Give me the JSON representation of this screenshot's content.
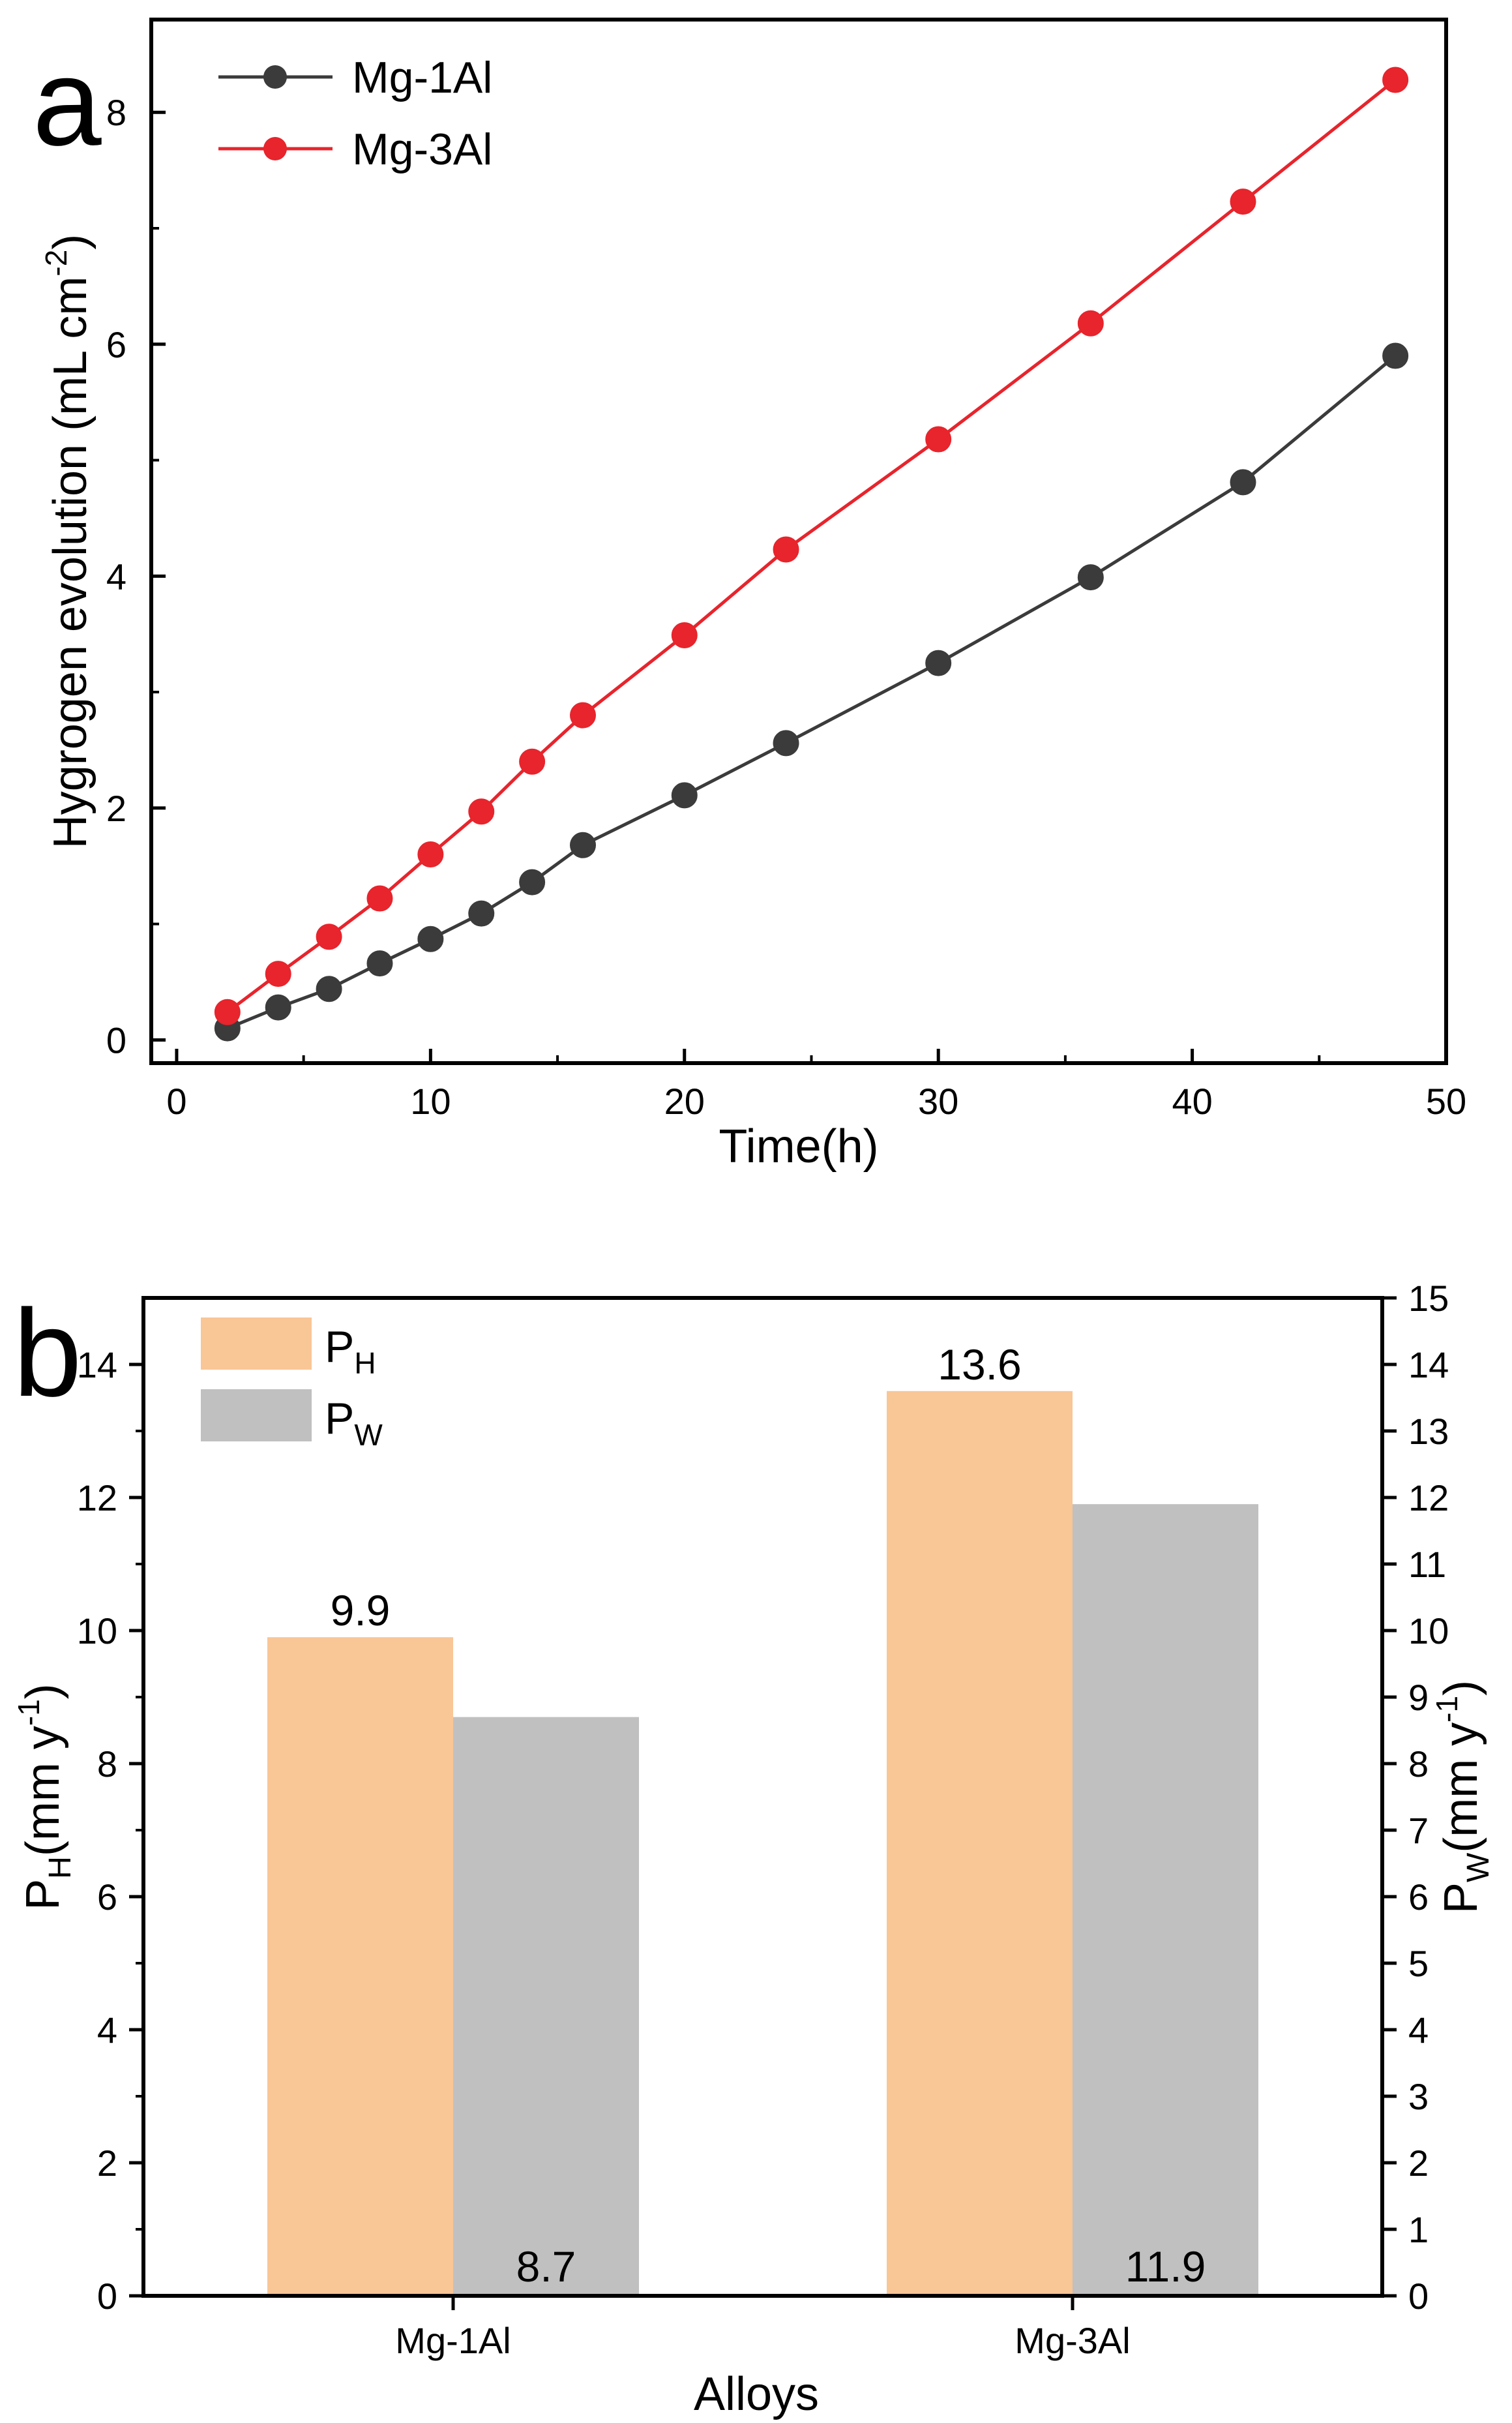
{
  "chart_data": [
    {
      "panel": "a",
      "type": "line",
      "xlabel": "Time(h)",
      "ylabel": "Hygrogen evolution (mL cm",
      "ylabel_sup": "-2",
      "ylabel_end": ")",
      "xlim": [
        -1,
        50
      ],
      "ylim": [
        -0.2,
        8.8
      ],
      "xticks": [
        0,
        10,
        20,
        30,
        40,
        50
      ],
      "yticks": [
        0,
        2,
        4,
        6,
        8
      ],
      "series": [
        {
          "name": "Mg-1Al",
          "color": "#3b3b3b",
          "x": [
            2,
            4,
            6,
            8,
            10,
            12,
            14,
            16,
            20,
            24,
            30,
            36,
            42,
            48
          ],
          "y": [
            0.1,
            0.28,
            0.44,
            0.66,
            0.87,
            1.09,
            1.36,
            1.68,
            2.11,
            2.56,
            3.25,
            3.99,
            4.81,
            5.9
          ]
        },
        {
          "name": "Mg-3Al",
          "color": "#e8242c",
          "x": [
            2,
            4,
            6,
            8,
            10,
            12,
            14,
            16,
            20,
            24,
            30,
            36,
            42,
            48
          ],
          "y": [
            0.24,
            0.57,
            0.89,
            1.22,
            1.6,
            1.97,
            2.4,
            2.8,
            3.49,
            4.23,
            5.18,
            6.18,
            7.23,
            8.28
          ]
        }
      ]
    },
    {
      "panel": "b",
      "type": "bar",
      "xlabel": "Alloys",
      "ylabel_left": {
        "base": "P",
        "sub": "H",
        "rest": "(mm y",
        "sup": "-1",
        "end": ")"
      },
      "ylabel_right": {
        "base": "P",
        "sub": "W",
        "rest": "(mm y",
        "sup": "-1",
        "end": ")"
      },
      "categories": [
        "Mg-1Al",
        "Mg-3Al"
      ],
      "ylim_left": [
        0,
        15
      ],
      "ylim_right": [
        0,
        15
      ],
      "yticks_left": [
        0,
        2,
        4,
        6,
        8,
        10,
        12,
        14
      ],
      "yticks_right": [
        0,
        1,
        2,
        3,
        4,
        5,
        6,
        7,
        8,
        9,
        10,
        11,
        12,
        13,
        14,
        15
      ],
      "series": [
        {
          "name_base": "P",
          "name_sub": "H",
          "color": "#f9c696",
          "values": [
            9.9,
            13.6
          ],
          "labels": [
            "9.9",
            "13.6"
          ]
        },
        {
          "name_base": "P",
          "name_sub": "W",
          "color": "#c0c0c0",
          "values": [
            8.7,
            11.9
          ],
          "labels": [
            "8.7",
            "11.9"
          ]
        }
      ]
    }
  ]
}
